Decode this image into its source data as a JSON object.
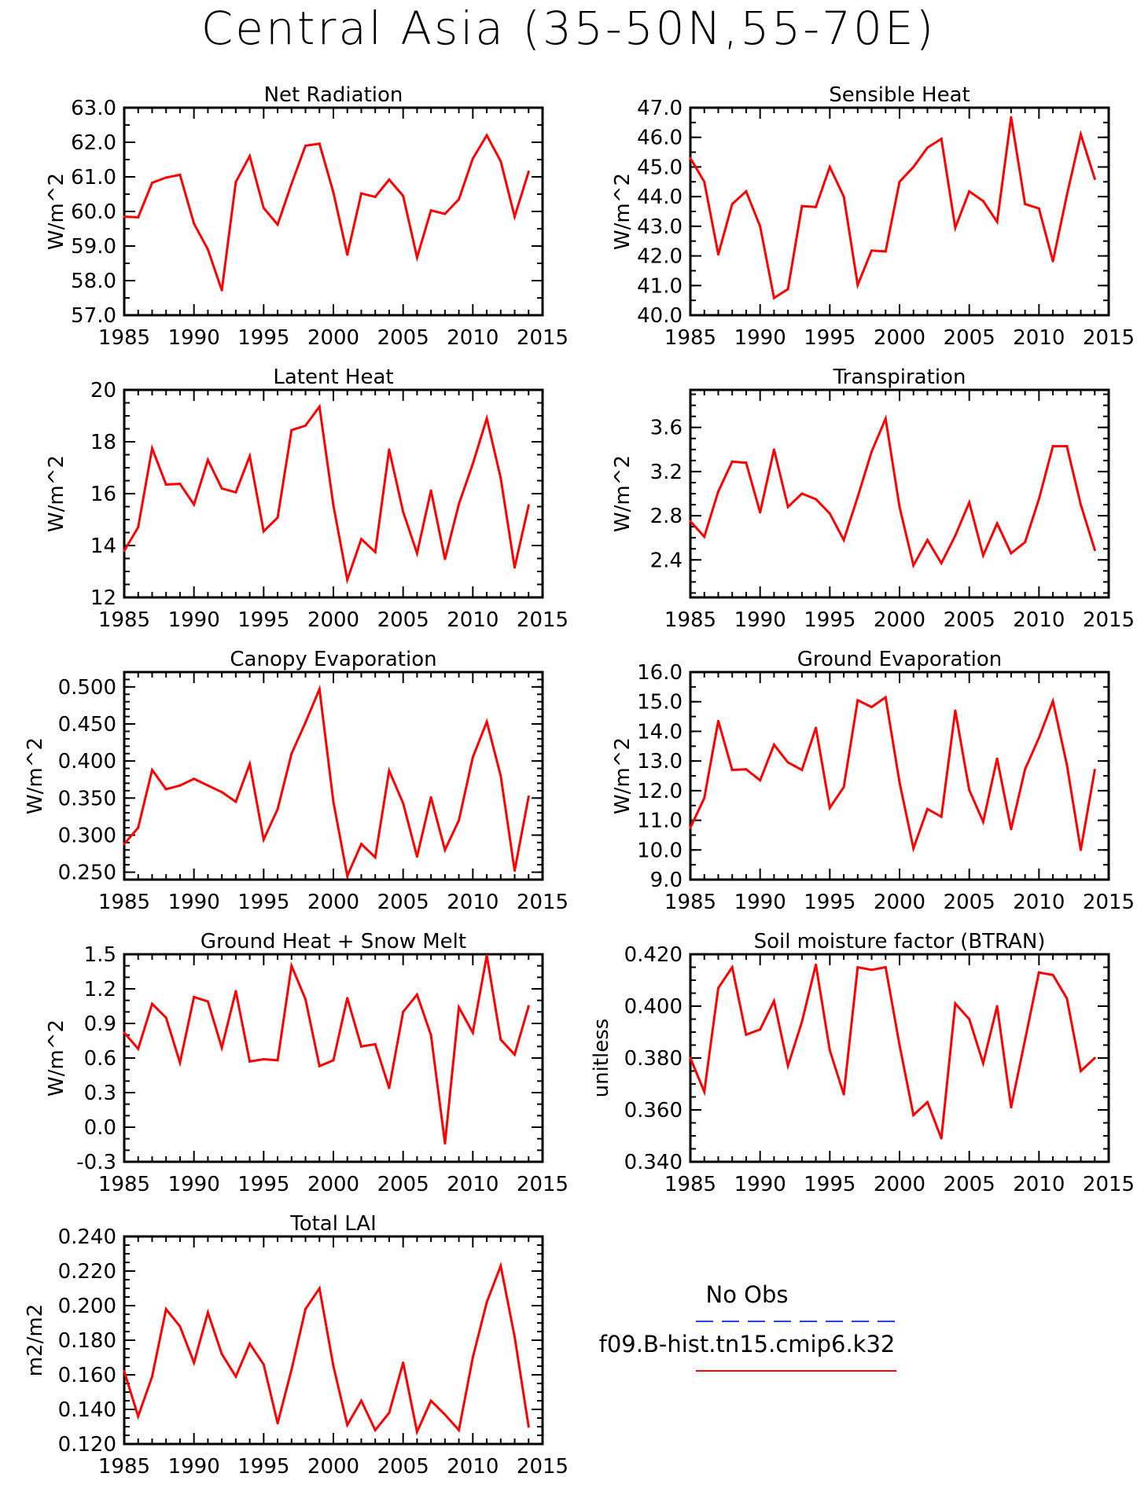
{
  "title": "Central Asia (35-50N,55-70E)",
  "legend": [
    {
      "label": "No Obs",
      "color": "#2b3fe0",
      "style": "dashed"
    },
    {
      "label": "f09.B-hist.tn15.cmip6.k32",
      "color": "#ff0000",
      "style": "solid"
    }
  ],
  "line_color": "#ff0000",
  "chart_data": [
    {
      "type": "line",
      "title": "Net Radiation",
      "ylabel": "W/m^2",
      "xlim": [
        1985,
        2015
      ],
      "ylim": [
        57,
        63
      ],
      "yticks": [
        57,
        58,
        59,
        60,
        61,
        62,
        63
      ],
      "ytick_labels": [
        "57.0",
        "58.0",
        "59.0",
        "60.0",
        "61.0",
        "62.0",
        "63.0"
      ],
      "yminor": 0.5,
      "xticks": [
        1985,
        1990,
        1995,
        2000,
        2005,
        2010,
        2015
      ],
      "x_start": 1985,
      "values": [
        59.85,
        59.83,
        60.83,
        60.98,
        61.06,
        59.65,
        58.9,
        57.72,
        60.85,
        61.6,
        60.1,
        59.62,
        60.8,
        61.9,
        61.96,
        60.55,
        58.75,
        60.52,
        60.42,
        60.92,
        60.45,
        58.67,
        60.03,
        59.93,
        60.35,
        61.53,
        62.2,
        61.45,
        59.85,
        61.15
      ]
    },
    {
      "type": "line",
      "title": "Sensible Heat",
      "ylabel": "W/m^2",
      "xlim": [
        1985,
        2015
      ],
      "ylim": [
        40,
        47
      ],
      "yticks": [
        40,
        41,
        42,
        43,
        44,
        45,
        46,
        47
      ],
      "ytick_labels": [
        "40.0",
        "41.0",
        "42.0",
        "43.0",
        "44.0",
        "45.0",
        "46.0",
        "47.0"
      ],
      "yminor": 0.5,
      "xticks": [
        1985,
        1990,
        1995,
        2000,
        2005,
        2010,
        2015
      ],
      "x_start": 1985,
      "values": [
        45.3,
        44.5,
        42.05,
        43.75,
        44.18,
        43.0,
        40.58,
        40.88,
        43.68,
        43.65,
        45.0,
        44.0,
        41.02,
        42.18,
        42.15,
        44.5,
        45.0,
        45.65,
        45.95,
        42.95,
        44.18,
        43.85,
        43.15,
        46.68,
        43.75,
        43.6,
        41.82,
        44.05,
        46.1,
        44.6
      ]
    },
    {
      "type": "line",
      "title": "Latent Heat",
      "ylabel": "W/m^2",
      "xlim": [
        1985,
        2015
      ],
      "ylim": [
        12,
        20
      ],
      "yticks": [
        12,
        14,
        16,
        18,
        20
      ],
      "ytick_labels": [
        "12",
        "14",
        "16",
        "18",
        "20"
      ],
      "yminor": 0.5,
      "xticks": [
        1985,
        1990,
        1995,
        2000,
        2005,
        2010,
        2015
      ],
      "x_start": 1985,
      "values": [
        13.8,
        14.7,
        17.75,
        16.35,
        16.38,
        15.58,
        17.3,
        16.2,
        16.05,
        17.45,
        14.55,
        15.08,
        18.45,
        18.62,
        19.35,
        15.55,
        12.68,
        14.25,
        13.75,
        17.7,
        15.3,
        13.7,
        16.12,
        13.48,
        15.6,
        17.15,
        18.9,
        16.6,
        13.15,
        15.55
      ]
    },
    {
      "type": "line",
      "title": "Transpiration",
      "ylabel": "W/m^2",
      "xlim": [
        1985,
        2015
      ],
      "ylim": [
        2.06,
        3.94
      ],
      "yticks": [
        2.4,
        2.8,
        3.2,
        3.6
      ],
      "ytick_labels": [
        "2.4",
        "2.8",
        "3.2",
        "3.6"
      ],
      "yminor": 0.1,
      "xticks": [
        1985,
        1990,
        1995,
        2000,
        2005,
        2010,
        2015
      ],
      "x_start": 1985,
      "values": [
        2.75,
        2.61,
        3.02,
        3.29,
        3.28,
        2.83,
        3.4,
        2.88,
        3.0,
        2.95,
        2.82,
        2.58,
        2.97,
        3.38,
        3.68,
        2.88,
        2.35,
        2.58,
        2.37,
        2.62,
        2.92,
        2.44,
        2.73,
        2.46,
        2.56,
        2.95,
        3.43,
        3.43,
        2.9,
        2.49
      ]
    },
    {
      "type": "line",
      "title": "Canopy Evaporation",
      "ylabel": "W/m^2",
      "xlim": [
        1985,
        2015
      ],
      "ylim": [
        0.24,
        0.52
      ],
      "yticks": [
        0.25,
        0.3,
        0.35,
        0.4,
        0.45,
        0.5
      ],
      "ytick_labels": [
        "0.250",
        "0.300",
        "0.350",
        "0.400",
        "0.450",
        "0.500"
      ],
      "yminor": 0.01,
      "xticks": [
        1985,
        1990,
        1995,
        2000,
        2005,
        2010,
        2015
      ],
      "x_start": 1985,
      "values": [
        0.288,
        0.31,
        0.388,
        0.362,
        0.367,
        0.376,
        0.367,
        0.358,
        0.345,
        0.396,
        0.294,
        0.335,
        0.41,
        0.452,
        0.497,
        0.345,
        0.245,
        0.288,
        0.27,
        0.387,
        0.343,
        0.271,
        0.351,
        0.28,
        0.32,
        0.405,
        0.453,
        0.38,
        0.252,
        0.352
      ]
    },
    {
      "type": "line",
      "title": "Ground Evaporation",
      "ylabel": "W/m^2",
      "xlim": [
        1985,
        2015
      ],
      "ylim": [
        9,
        16
      ],
      "yticks": [
        9,
        10,
        11,
        12,
        13,
        14,
        15,
        16
      ],
      "ytick_labels": [
        "9.0",
        "10.0",
        "11.0",
        "12.0",
        "13.0",
        "14.0",
        "15.0",
        "16.0"
      ],
      "yminor": 0.5,
      "xticks": [
        1985,
        1990,
        1995,
        2000,
        2005,
        2010,
        2015
      ],
      "x_start": 1985,
      "values": [
        10.75,
        11.75,
        14.35,
        12.7,
        12.72,
        12.35,
        13.55,
        12.95,
        12.7,
        14.12,
        11.42,
        12.12,
        15.05,
        14.82,
        15.15,
        12.28,
        10.05,
        11.38,
        11.12,
        14.7,
        12.02,
        10.95,
        13.08,
        10.7,
        12.72,
        13.78,
        15.02,
        12.88,
        10.0,
        12.7
      ]
    },
    {
      "type": "line",
      "title": "Ground Heat + Snow Melt",
      "ylabel": "W/m^2",
      "xlim": [
        1985,
        2015
      ],
      "ylim": [
        -0.3,
        1.5
      ],
      "yticks": [
        -0.3,
        0,
        0.3,
        0.6,
        0.9,
        1.2,
        1.5
      ],
      "ytick_labels": [
        "-0.3",
        "0.0",
        "0.3",
        "0.6",
        "0.9",
        "1.2",
        "1.5"
      ],
      "yminor": 0.1,
      "xticks": [
        1985,
        1990,
        1995,
        2000,
        2005,
        2010,
        2015
      ],
      "x_start": 1985,
      "values": [
        0.82,
        0.68,
        1.07,
        0.95,
        0.56,
        1.13,
        1.09,
        0.69,
        1.18,
        0.57,
        0.59,
        0.58,
        1.4,
        1.11,
        0.53,
        0.58,
        1.12,
        0.7,
        0.72,
        0.34,
        1.0,
        1.15,
        0.8,
        -0.14,
        1.04,
        0.82,
        1.49,
        0.76,
        0.63,
        1.05
      ]
    },
    {
      "type": "line",
      "title": "Soil moisture factor (BTRAN)",
      "ylabel": "unitless",
      "xlim": [
        1985,
        2015
      ],
      "ylim": [
        0.34,
        0.42
      ],
      "yticks": [
        0.34,
        0.36,
        0.38,
        0.4,
        0.42
      ],
      "ytick_labels": [
        "0.340",
        "0.360",
        "0.380",
        "0.400",
        "0.420"
      ],
      "yminor": 0.005,
      "xticks": [
        1985,
        1990,
        1995,
        2000,
        2005,
        2010,
        2015
      ],
      "x_start": 1985,
      "values": [
        0.38,
        0.367,
        0.407,
        0.415,
        0.389,
        0.391,
        0.402,
        0.377,
        0.394,
        0.416,
        0.383,
        0.366,
        0.415,
        0.414,
        0.415,
        0.385,
        0.358,
        0.363,
        0.349,
        0.401,
        0.395,
        0.378,
        0.4,
        0.361,
        0.387,
        0.413,
        0.412,
        0.403,
        0.375,
        0.38
      ]
    },
    {
      "type": "line",
      "title": "Total LAI",
      "ylabel": "m2/m2",
      "xlim": [
        1985,
        2015
      ],
      "ylim": [
        0.12,
        0.24
      ],
      "yticks": [
        0.12,
        0.14,
        0.16,
        0.18,
        0.2,
        0.22,
        0.24
      ],
      "ytick_labels": [
        "0.120",
        "0.140",
        "0.160",
        "0.180",
        "0.200",
        "0.220",
        "0.240"
      ],
      "yminor": 0.005,
      "xticks": [
        1985,
        1990,
        1995,
        2000,
        2005,
        2010,
        2015
      ],
      "x_start": 1985,
      "values": [
        0.162,
        0.136,
        0.159,
        0.198,
        0.188,
        0.167,
        0.196,
        0.172,
        0.159,
        0.178,
        0.166,
        0.132,
        0.163,
        0.198,
        0.21,
        0.165,
        0.131,
        0.145,
        0.128,
        0.138,
        0.167,
        0.127,
        0.145,
        0.137,
        0.128,
        0.17,
        0.202,
        0.223,
        0.182,
        0.13
      ]
    }
  ]
}
